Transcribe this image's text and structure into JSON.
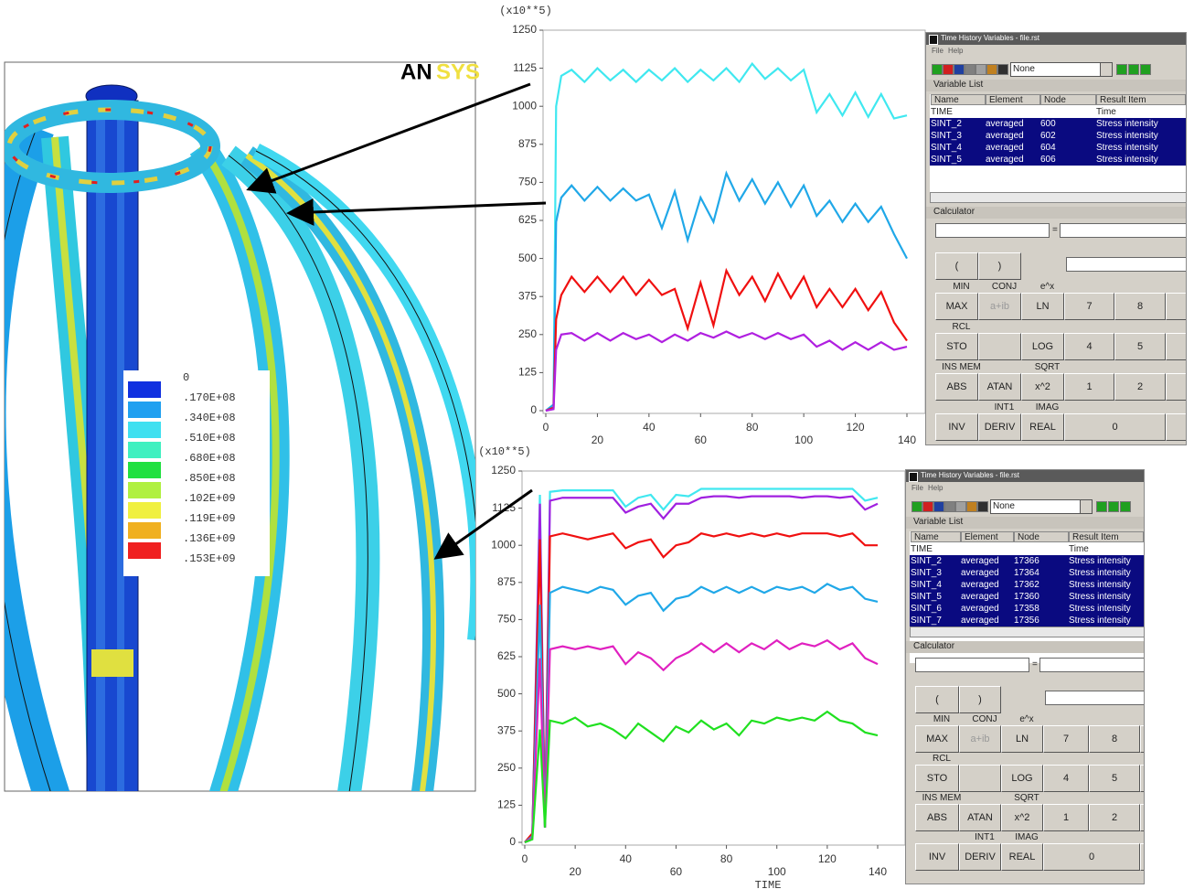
{
  "fem_view": {
    "logo": [
      "AN",
      "SYS"
    ],
    "contour_legend": {
      "labels": [
        "0",
        ".170E+08",
        ".340E+08",
        ".510E+08",
        ".680E+08",
        ".850E+08",
        ".102E+09",
        ".119E+09",
        ".136E+09",
        ".153E+09"
      ],
      "colors": [
        "#1030e0",
        "#20a0f0",
        "#40e0f0",
        "#40f0c0",
        "#20e040",
        "#b0f040",
        "#f0f040",
        "#f0b020",
        "#f02020"
      ]
    }
  },
  "chart_data": [
    {
      "type": "line",
      "ylabel": "(x10**5)",
      "x": [
        0,
        3,
        4,
        6,
        10,
        15,
        20,
        25,
        30,
        35,
        40,
        45,
        50,
        55,
        60,
        65,
        70,
        75,
        80,
        85,
        90,
        95,
        100,
        105,
        110,
        115,
        120,
        125,
        130,
        135,
        140
      ],
      "xlim": [
        0,
        140
      ],
      "xticks": [
        0,
        20,
        40,
        60,
        80,
        100,
        120,
        140
      ],
      "ylim": [
        0,
        1250
      ],
      "yticks": [
        0,
        125,
        250,
        375,
        500,
        625,
        750,
        875,
        1000,
        1125,
        1250
      ],
      "series": [
        {
          "color": "#40e8f0",
          "values": [
            0,
            10,
            1000,
            1100,
            1120,
            1080,
            1125,
            1085,
            1120,
            1080,
            1120,
            1085,
            1125,
            1080,
            1120,
            1085,
            1125,
            1080,
            1140,
            1090,
            1125,
            1085,
            1120,
            980,
            1040,
            970,
            1045,
            965,
            1040,
            960,
            970
          ]
        },
        {
          "color": "#20a8e8",
          "values": [
            0,
            20,
            620,
            700,
            740,
            690,
            735,
            690,
            730,
            690,
            710,
            600,
            720,
            560,
            700,
            620,
            780,
            690,
            760,
            680,
            750,
            670,
            740,
            640,
            690,
            620,
            680,
            620,
            670,
            580,
            500
          ]
        },
        {
          "color": "#f01010",
          "values": [
            0,
            10,
            300,
            380,
            440,
            390,
            440,
            390,
            440,
            380,
            430,
            380,
            400,
            270,
            420,
            280,
            460,
            380,
            440,
            360,
            450,
            370,
            440,
            340,
            400,
            340,
            400,
            330,
            390,
            290,
            230
          ]
        },
        {
          "color": "#b020e0",
          "values": [
            0,
            5,
            200,
            250,
            255,
            230,
            255,
            230,
            255,
            235,
            250,
            225,
            250,
            230,
            255,
            240,
            260,
            240,
            255,
            235,
            255,
            235,
            250,
            210,
            230,
            200,
            225,
            200,
            225,
            200,
            210
          ]
        }
      ]
    },
    {
      "type": "line",
      "ylabel": "(x10**5)",
      "xlabel": "TIME",
      "x": [
        0,
        3,
        6,
        8,
        10,
        15,
        20,
        25,
        30,
        35,
        40,
        45,
        50,
        55,
        60,
        65,
        70,
        75,
        80,
        85,
        90,
        95,
        100,
        105,
        110,
        115,
        120,
        125,
        130,
        135,
        140
      ],
      "xlim": [
        0,
        140
      ],
      "xticks": [
        0,
        20,
        40,
        60,
        80,
        100,
        120,
        140
      ],
      "ylim": [
        0,
        1250
      ],
      "yticks": [
        0,
        125,
        250,
        375,
        500,
        625,
        750,
        875,
        1000,
        1125,
        1250
      ],
      "series": [
        {
          "color": "#40e8f0",
          "values": [
            0,
            20,
            1170,
            50,
            1180,
            1185,
            1185,
            1185,
            1185,
            1185,
            1130,
            1160,
            1170,
            1120,
            1170,
            1165,
            1190,
            1190,
            1190,
            1190,
            1190,
            1190,
            1190,
            1190,
            1190,
            1190,
            1190,
            1190,
            1190,
            1150,
            1160
          ]
        },
        {
          "color": "#a020e0",
          "values": [
            0,
            20,
            1140,
            50,
            1150,
            1160,
            1160,
            1160,
            1160,
            1160,
            1110,
            1130,
            1140,
            1090,
            1140,
            1140,
            1160,
            1165,
            1165,
            1160,
            1165,
            1165,
            1165,
            1165,
            1160,
            1165,
            1165,
            1160,
            1165,
            1120,
            1140
          ]
        },
        {
          "color": "#f01010",
          "values": [
            0,
            30,
            1020,
            50,
            1030,
            1040,
            1030,
            1020,
            1030,
            1040,
            990,
            1010,
            1020,
            960,
            1000,
            1010,
            1040,
            1030,
            1040,
            1030,
            1040,
            1030,
            1040,
            1030,
            1040,
            1040,
            1040,
            1030,
            1040,
            1000,
            1000
          ]
        },
        {
          "color": "#20a8e8",
          "values": [
            0,
            20,
            800,
            50,
            840,
            860,
            850,
            840,
            860,
            850,
            800,
            830,
            840,
            780,
            820,
            830,
            860,
            840,
            860,
            840,
            860,
            840,
            860,
            850,
            860,
            840,
            870,
            850,
            860,
            820,
            810
          ]
        },
        {
          "color": "#e020c0",
          "values": [
            0,
            15,
            620,
            50,
            650,
            660,
            650,
            660,
            650,
            660,
            600,
            640,
            620,
            580,
            620,
            640,
            670,
            640,
            670,
            640,
            670,
            650,
            680,
            650,
            670,
            660,
            680,
            650,
            670,
            620,
            600
          ]
        },
        {
          "color": "#20e020",
          "values": [
            0,
            10,
            380,
            50,
            410,
            400,
            420,
            390,
            400,
            380,
            350,
            400,
            370,
            340,
            390,
            370,
            410,
            380,
            400,
            360,
            410,
            400,
            420,
            410,
            420,
            410,
            440,
            410,
            400,
            370,
            360
          ]
        }
      ]
    }
  ],
  "panels": [
    {
      "title": "Time History Variables - file.rst",
      "menu": [
        "File",
        "Help"
      ],
      "dropdown": "None",
      "list_title": "Variable List",
      "columns": [
        "Name",
        "Element",
        "Node",
        "Result Item"
      ],
      "rows": [
        {
          "name": "TIME",
          "result": "Time"
        },
        {
          "name": "SINT_2",
          "element": "averaged",
          "node": "600",
          "result": "Stress intensity"
        },
        {
          "name": "SINT_3",
          "element": "averaged",
          "node": "602",
          "result": "Stress intensity"
        },
        {
          "name": "SINT_4",
          "element": "averaged",
          "node": "604",
          "result": "Stress intensity"
        },
        {
          "name": "SINT_5",
          "element": "averaged",
          "node": "606",
          "result": "Stress intensity"
        }
      ],
      "calc_title": "Calculator",
      "equals": "=",
      "buttons": [
        "(",
        ")",
        "MAX",
        "a+ib",
        "LN",
        "7",
        "8",
        "STO",
        "LOG",
        "4",
        "5",
        "ABS",
        "ATAN",
        "x^2",
        "1",
        "2",
        "INV",
        "DERIV",
        "REAL",
        "0"
      ],
      "captions": [
        "MIN",
        "CONJ",
        "e^x",
        "RCL",
        "INS MEM",
        "SQRT",
        "INT1",
        "IMAG"
      ]
    },
    {
      "title": "Time History Variables - file.rst",
      "menu": [
        "File",
        "Help"
      ],
      "dropdown": "None",
      "list_title": "Variable List",
      "columns": [
        "Name",
        "Element",
        "Node",
        "Result Item"
      ],
      "rows": [
        {
          "name": "TIME",
          "result": "Time"
        },
        {
          "name": "SINT_2",
          "element": "averaged",
          "node": "17366",
          "result": "Stress intensity"
        },
        {
          "name": "SINT_3",
          "element": "averaged",
          "node": "17364",
          "result": "Stress intensity"
        },
        {
          "name": "SINT_4",
          "element": "averaged",
          "node": "17362",
          "result": "Stress intensity"
        },
        {
          "name": "SINT_5",
          "element": "averaged",
          "node": "17360",
          "result": "Stress intensity"
        },
        {
          "name": "SINT_6",
          "element": "averaged",
          "node": "17358",
          "result": "Stress intensity"
        },
        {
          "name": "SINT_7",
          "element": "averaged",
          "node": "17356",
          "result": "Stress intensity"
        }
      ],
      "calc_title": "Calculator",
      "equals": "=",
      "buttons": [
        "(",
        ")",
        "MAX",
        "a+ib",
        "LN",
        "7",
        "8",
        "STO",
        "LOG",
        "4",
        "5",
        "ABS",
        "ATAN",
        "x^2",
        "1",
        "2",
        "INV",
        "DERIV",
        "REAL",
        "0"
      ],
      "captions": [
        "MIN",
        "CONJ",
        "e^x",
        "RCL",
        "INS MEM",
        "SQRT",
        "INT1",
        "IMAG"
      ]
    }
  ]
}
